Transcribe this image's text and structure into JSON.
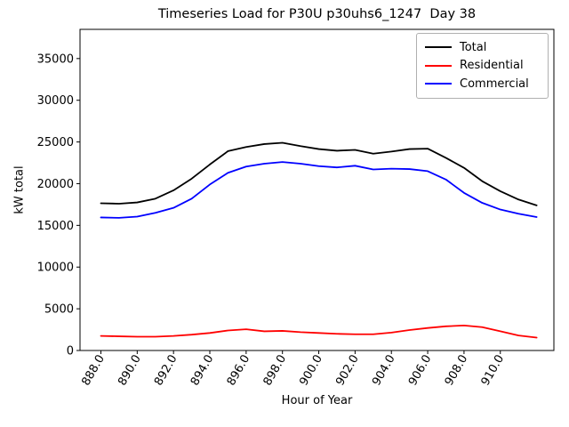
{
  "title": "Timeseries Load for P30U p30uhs6_1247  Day 38",
  "chart_data": {
    "type": "line",
    "title": "Timeseries Load for P30U p30uhs6_1247  Day 38",
    "xlabel": "Hour of Year",
    "ylabel": "kW total",
    "grid": false,
    "legend_position": "upper right",
    "xlim": [
      886.85,
      912.95
    ],
    "ylim": [
      0,
      38500
    ],
    "xticks": [
      888,
      890,
      892,
      894,
      896,
      898,
      900,
      902,
      904,
      906,
      908,
      910
    ],
    "yticks": [
      0,
      5000,
      10000,
      15000,
      20000,
      25000,
      30000,
      35000
    ],
    "x": [
      888,
      889,
      890,
      891,
      892,
      893,
      894,
      895,
      896,
      897,
      898,
      899,
      900,
      901,
      902,
      903,
      904,
      905,
      906,
      907,
      908,
      909,
      910,
      911,
      912
    ],
    "series": [
      {
        "name": "Total",
        "color": "#000000",
        "values": [
          17650,
          17600,
          17750,
          18200,
          19200,
          20600,
          22300,
          23900,
          24400,
          24750,
          24900,
          24500,
          24150,
          23950,
          24050,
          23600,
          23850,
          24150,
          24200,
          23100,
          21900,
          20300,
          19100,
          18100,
          17400
        ]
      },
      {
        "name": "Residential",
        "color": "#ff0000",
        "values": [
          1750,
          1700,
          1650,
          1650,
          1750,
          1900,
          2100,
          2400,
          2550,
          2300,
          2350,
          2200,
          2100,
          2000,
          1950,
          1950,
          2150,
          2450,
          2700,
          2900,
          3000,
          2800,
          2300,
          1800,
          1550
        ]
      },
      {
        "name": "Commercial",
        "color": "#0000ff",
        "values": [
          15950,
          15900,
          16050,
          16500,
          17100,
          18200,
          19900,
          21300,
          22050,
          22400,
          22600,
          22400,
          22100,
          21950,
          22150,
          21700,
          21800,
          21750,
          21500,
          20500,
          18900,
          17700,
          16900,
          16400,
          16000
        ]
      }
    ]
  }
}
